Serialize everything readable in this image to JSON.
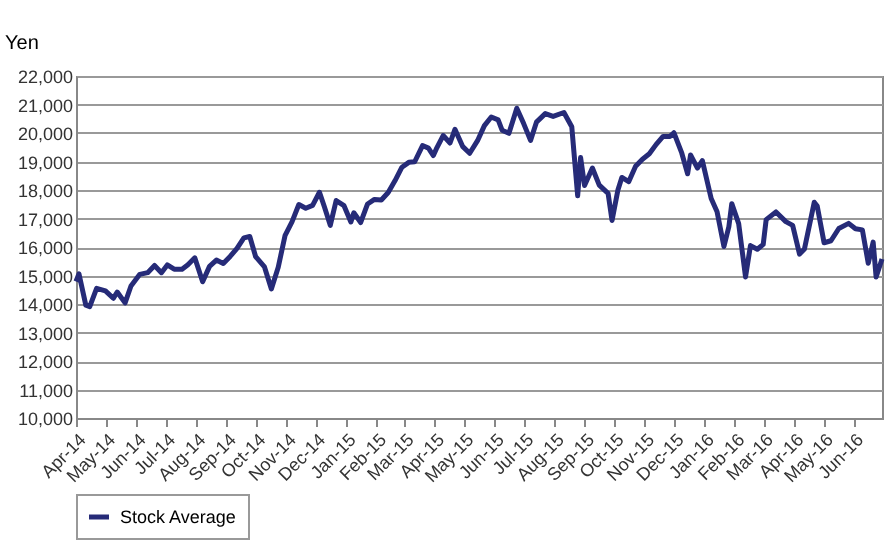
{
  "chart_data": {
    "type": "line",
    "ylabel": "Yen",
    "legend": "bottom",
    "grid": "y",
    "line_style": "solid",
    "marker": "none",
    "x": [
      "2014-04-01",
      "2014-04-04",
      "2014-04-11",
      "2014-04-15",
      "2014-04-22",
      "2014-05-01",
      "2014-05-09",
      "2014-05-13",
      "2014-05-21",
      "2014-05-27",
      "2014-06-05",
      "2014-06-13",
      "2014-06-20",
      "2014-06-27",
      "2014-07-03",
      "2014-07-10",
      "2014-07-18",
      "2014-07-24",
      "2014-07-31",
      "2014-08-08",
      "2014-08-15",
      "2014-08-22",
      "2014-08-29",
      "2014-09-05",
      "2014-09-12",
      "2014-09-19",
      "2014-09-25",
      "2014-10-01",
      "2014-10-10",
      "2014-10-17",
      "2014-10-24",
      "2014-10-31",
      "2014-11-07",
      "2014-11-14",
      "2014-11-21",
      "2014-11-28",
      "2014-12-05",
      "2014-12-10",
      "2014-12-16",
      "2014-12-22",
      "2014-12-30",
      "2015-01-06",
      "2015-01-09",
      "2015-01-16",
      "2015-01-23",
      "2015-01-30",
      "2015-02-06",
      "2015-02-13",
      "2015-02-20",
      "2015-02-27",
      "2015-03-06",
      "2015-03-12",
      "2015-03-20",
      "2015-03-26",
      "2015-03-31",
      "2015-04-03",
      "2015-04-10",
      "2015-04-17",
      "2015-04-22",
      "2015-04-30",
      "2015-05-07",
      "2015-05-15",
      "2015-05-22",
      "2015-05-29",
      "2015-06-05",
      "2015-06-09",
      "2015-06-16",
      "2015-06-24",
      "2015-07-01",
      "2015-07-08",
      "2015-07-14",
      "2015-07-23",
      "2015-07-31",
      "2015-08-11",
      "2015-08-19",
      "2015-08-25",
      "2015-08-28",
      "2015-09-01",
      "2015-09-09",
      "2015-09-16",
      "2015-09-25",
      "2015-09-29",
      "2015-10-05",
      "2015-10-09",
      "2015-10-16",
      "2015-10-23",
      "2015-10-30",
      "2015-11-06",
      "2015-11-13",
      "2015-11-20",
      "2015-11-27",
      "2015-12-01",
      "2015-12-09",
      "2015-12-15",
      "2015-12-18",
      "2015-12-25",
      "2015-12-30",
      "2016-01-08",
      "2016-01-14",
      "2016-01-21",
      "2016-01-26",
      "2016-01-29",
      "2016-02-05",
      "2016-02-12",
      "2016-02-17",
      "2016-02-24",
      "2016-03-01",
      "2016-03-04",
      "2016-03-14",
      "2016-03-24",
      "2016-03-31",
      "2016-04-07",
      "2016-04-12",
      "2016-04-22",
      "2016-04-25",
      "2016-05-02",
      "2016-05-09",
      "2016-05-17",
      "2016-05-27",
      "2016-06-03",
      "2016-06-10",
      "2016-06-16",
      "2016-06-21",
      "2016-06-24",
      "2016-06-30"
    ],
    "series": [
      {
        "name": "Stock Average",
        "color": "#262b78",
        "values": [
          14790,
          15060,
          13960,
          13910,
          14550,
          14460,
          14200,
          14420,
          14040,
          14630,
          15040,
          15100,
          15350,
          15100,
          15370,
          15220,
          15220,
          15380,
          15620,
          14780,
          15320,
          15540,
          15420,
          15670,
          15950,
          16320,
          16370,
          15660,
          15300,
          14530,
          15290,
          16410,
          16880,
          17490,
          17360,
          17460,
          17920,
          17410,
          16760,
          17630,
          17450,
          16880,
          17200,
          16860,
          17510,
          17670,
          17650,
          17910,
          18330,
          18800,
          18970,
          18990,
          19560,
          19470,
          19210,
          19440,
          19910,
          19650,
          20130,
          19520,
          19290,
          19730,
          20260,
          20560,
          20460,
          20100,
          19990,
          20870,
          20330,
          19740,
          20380,
          20680,
          20580,
          20720,
          20220,
          17800,
          19140,
          18160,
          18770,
          18170,
          17880,
          16930,
          18000,
          18440,
          18290,
          18830,
          19080,
          19270,
          19600,
          19880,
          19880,
          20010,
          19300,
          18570,
          19230,
          18770,
          19030,
          17700,
          17240,
          16020,
          16710,
          17520,
          16820,
          14950,
          16050,
          15920,
          16090,
          16960,
          17230,
          16890,
          16760,
          15750,
          15930,
          17570,
          17440,
          16150,
          16220,
          16650,
          16830,
          16640,
          16600,
          15430,
          16170,
          14950,
          15580
        ]
      }
    ],
    "xlim": [
      "2014-04-01",
      "2016-06-30"
    ],
    "xticks": [
      {
        "value": "2014-04-01",
        "label": "Apr-14"
      },
      {
        "value": "2014-05-01",
        "label": "May-14"
      },
      {
        "value": "2014-06-01",
        "label": "Jun-14"
      },
      {
        "value": "2014-07-01",
        "label": "Jul-14"
      },
      {
        "value": "2014-08-01",
        "label": "Aug-14"
      },
      {
        "value": "2014-09-01",
        "label": "Sep-14"
      },
      {
        "value": "2014-10-01",
        "label": "Oct-14"
      },
      {
        "value": "2014-11-01",
        "label": "Nov-14"
      },
      {
        "value": "2014-12-01",
        "label": "Dec-14"
      },
      {
        "value": "2015-01-01",
        "label": "Jan-15"
      },
      {
        "value": "2015-02-01",
        "label": "Feb-15"
      },
      {
        "value": "2015-03-01",
        "label": "Mar-15"
      },
      {
        "value": "2015-04-01",
        "label": "Apr-15"
      },
      {
        "value": "2015-05-01",
        "label": "May-15"
      },
      {
        "value": "2015-06-01",
        "label": "Jun-15"
      },
      {
        "value": "2015-07-01",
        "label": "Jul-15"
      },
      {
        "value": "2015-08-01",
        "label": "Aug-15"
      },
      {
        "value": "2015-09-01",
        "label": "Sep-15"
      },
      {
        "value": "2015-10-01",
        "label": "Oct-15"
      },
      {
        "value": "2015-11-01",
        "label": "Nov-15"
      },
      {
        "value": "2015-12-01",
        "label": "Dec-15"
      },
      {
        "value": "2016-01-01",
        "label": "Jan-16"
      },
      {
        "value": "2016-02-01",
        "label": "Feb-16"
      },
      {
        "value": "2016-03-01",
        "label": "Mar-16"
      },
      {
        "value": "2016-04-01",
        "label": "Apr-16"
      },
      {
        "value": "2016-05-01",
        "label": "May-16"
      },
      {
        "value": "2016-06-01",
        "label": "Jun-16"
      }
    ],
    "ylim": [
      10000,
      22000
    ],
    "yticks": [
      {
        "value": 10000,
        "label": "10,000"
      },
      {
        "value": 11000,
        "label": "11,000"
      },
      {
        "value": 12000,
        "label": "12,000"
      },
      {
        "value": 13000,
        "label": "13,000"
      },
      {
        "value": 14000,
        "label": "14,000"
      },
      {
        "value": 15000,
        "label": "15,000"
      },
      {
        "value": 16000,
        "label": "16,000"
      },
      {
        "value": 17000,
        "label": "17,000"
      },
      {
        "value": 18000,
        "label": "18,000"
      },
      {
        "value": 19000,
        "label": "19,000"
      },
      {
        "value": 20000,
        "label": "20,000"
      },
      {
        "value": 21000,
        "label": "21,000"
      },
      {
        "value": 22000,
        "label": "22,000"
      }
    ]
  }
}
